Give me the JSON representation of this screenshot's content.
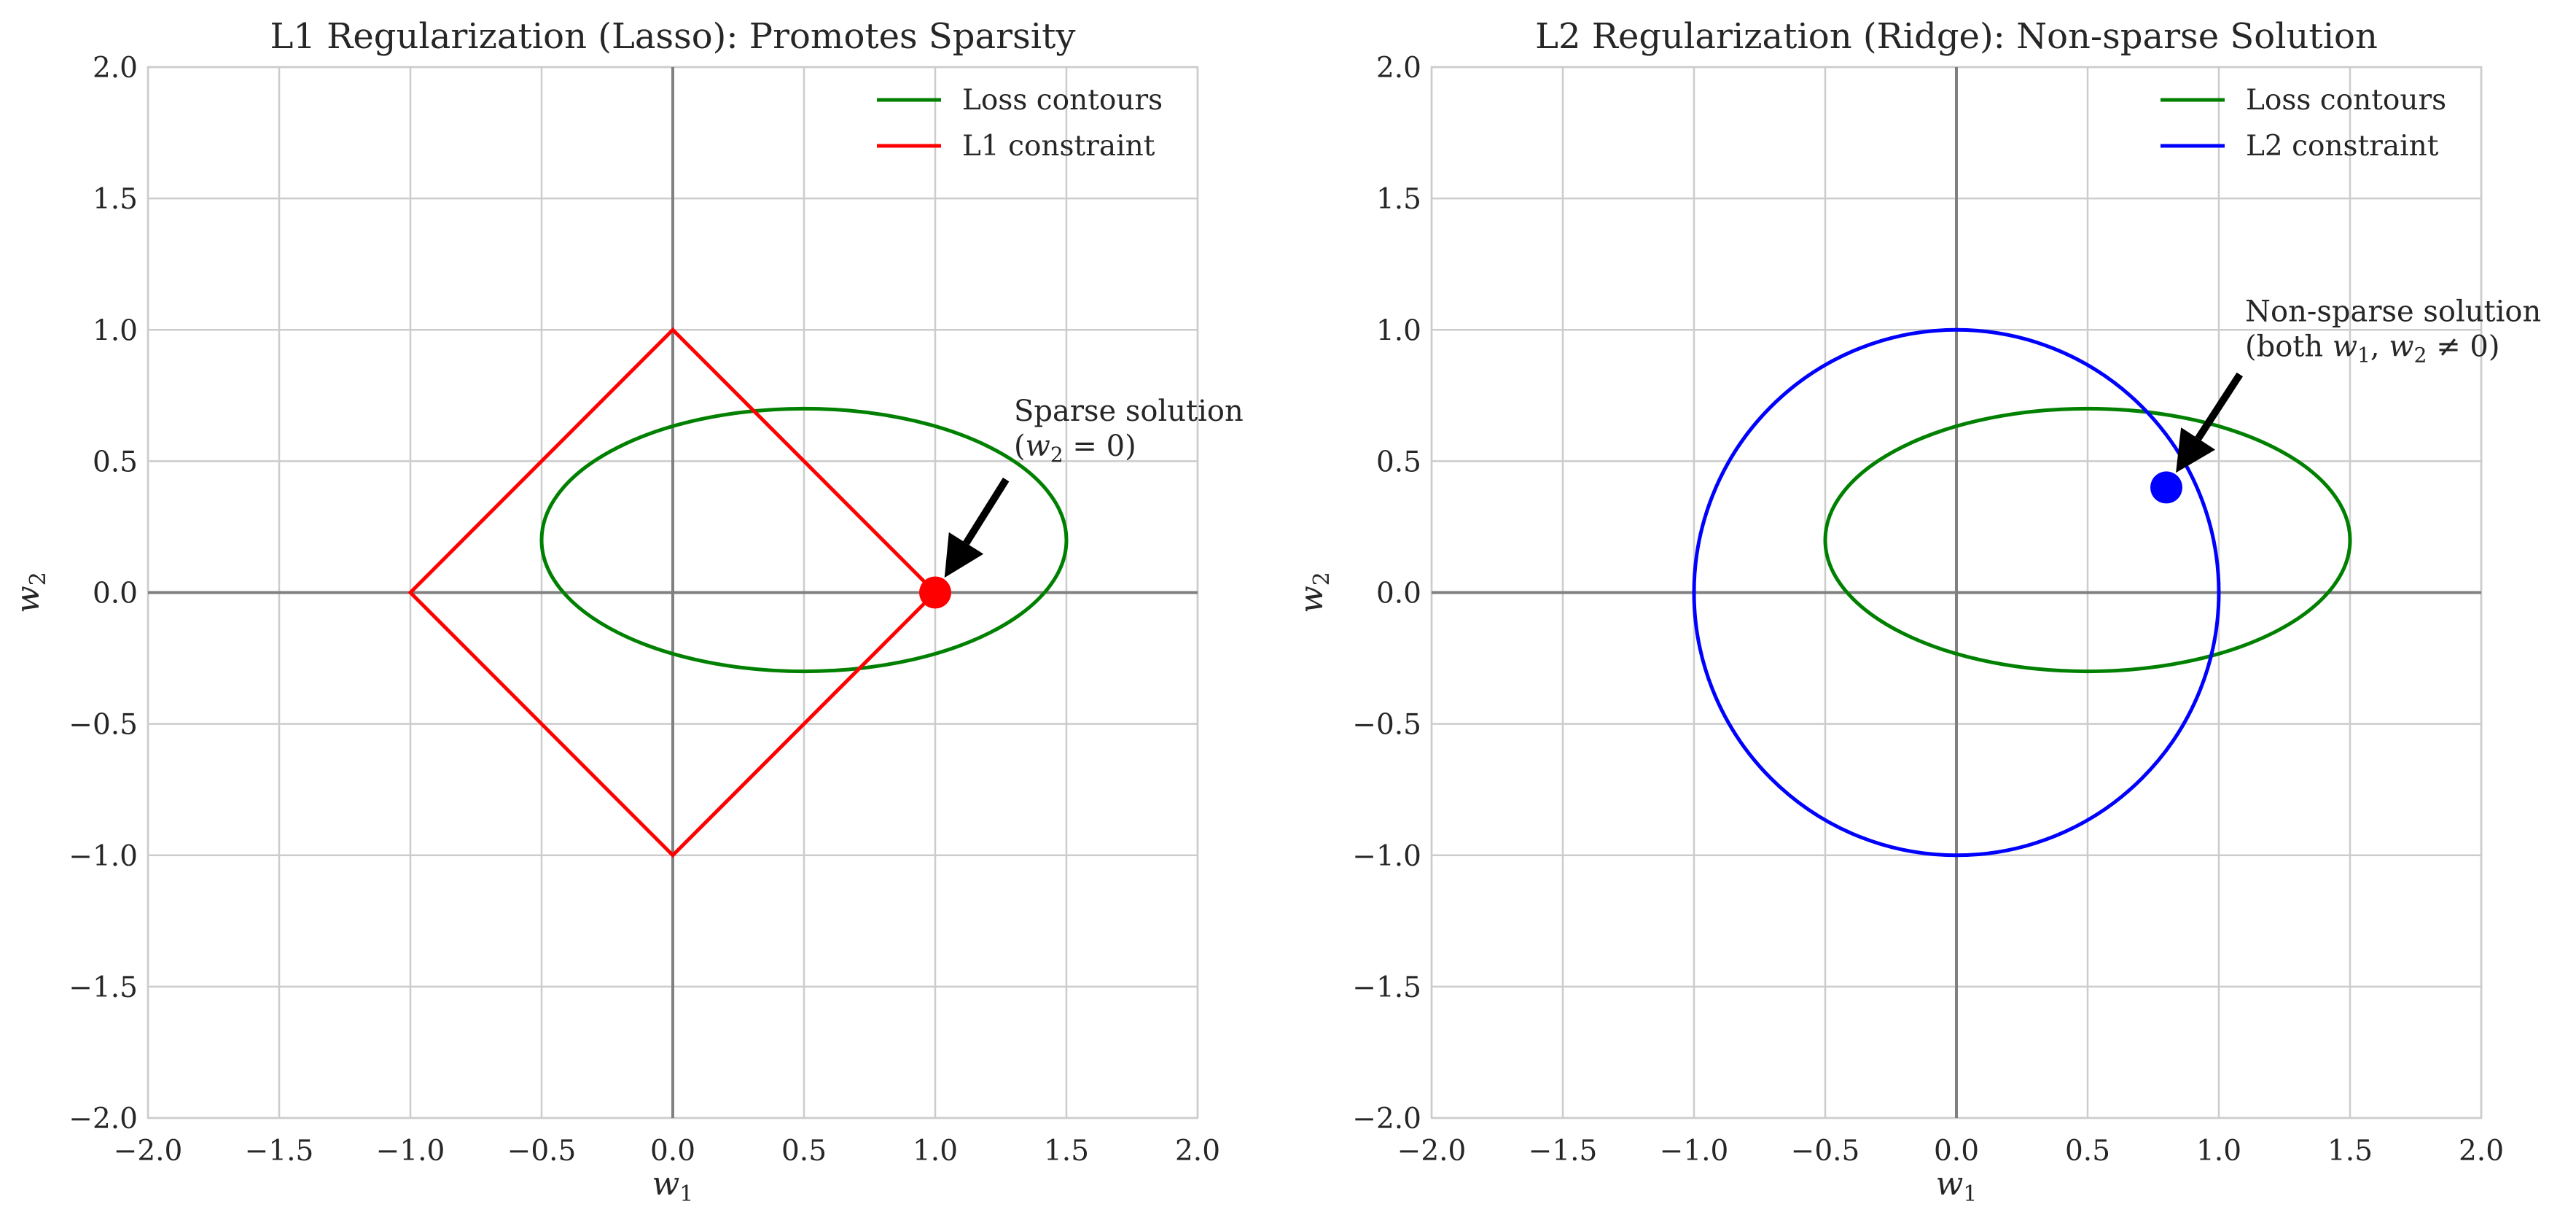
{
  "chart_data": [
    {
      "type": "line",
      "title": "L1 Regularization (Lasso): Promotes Sparsity",
      "xlabel": "w",
      "xlabel_sub": "1",
      "ylabel": "w",
      "ylabel_sub": "2",
      "xlim": [
        -2.0,
        2.0
      ],
      "ylim": [
        -2.0,
        2.0
      ],
      "xticks": [
        -2.0,
        -1.5,
        -1.0,
        -0.5,
        0.0,
        0.5,
        1.0,
        1.5,
        2.0
      ],
      "yticks": [
        -2.0,
        -1.5,
        -1.0,
        -0.5,
        0.0,
        0.5,
        1.0,
        1.5,
        2.0
      ],
      "grid": true,
      "legend_position": "top-right",
      "series": [
        {
          "name": "Loss contours",
          "color": "#008000",
          "kind": "ellipse",
          "center": [
            0.5,
            0.2
          ],
          "radii": [
            1.0,
            0.5
          ]
        },
        {
          "name": "L1 constraint",
          "color": "#ff0000",
          "kind": "polyline",
          "x": [
            1,
            0,
            -1,
            0,
            1
          ],
          "y": [
            0,
            1,
            0,
            -1,
            0
          ]
        }
      ],
      "point": {
        "x": 1.0,
        "y": 0.0,
        "color": "#ff0000"
      },
      "annotation": {
        "line1": "Sparse solution",
        "line2_prefix": "(",
        "line2_var": "w",
        "line2_sub": "2",
        "line2_suffix": " = 0)",
        "text_xy": [
          1.3,
          0.52
        ],
        "arrow_from": [
          1.27,
          0.43
        ],
        "arrow_to": [
          1.0,
          0.0
        ]
      }
    },
    {
      "type": "line",
      "title": "L2 Regularization (Ridge): Non-sparse Solution",
      "xlabel": "w",
      "xlabel_sub": "1",
      "ylabel": "w",
      "ylabel_sub": "2",
      "xlim": [
        -2.0,
        2.0
      ],
      "ylim": [
        -2.0,
        2.0
      ],
      "xticks": [
        -2.0,
        -1.5,
        -1.0,
        -0.5,
        0.0,
        0.5,
        1.0,
        1.5,
        2.0
      ],
      "yticks": [
        -2.0,
        -1.5,
        -1.0,
        -0.5,
        0.0,
        0.5,
        1.0,
        1.5,
        2.0
      ],
      "grid": true,
      "legend_position": "top-right",
      "series": [
        {
          "name": "Loss contours",
          "color": "#008000",
          "kind": "ellipse",
          "center": [
            0.5,
            0.2
          ],
          "radii": [
            1.0,
            0.5
          ]
        },
        {
          "name": "L2 constraint",
          "color": "#0000ff",
          "kind": "ellipse",
          "center": [
            0.0,
            0.0
          ],
          "radii": [
            1.0,
            1.0
          ]
        }
      ],
      "point": {
        "x": 0.8,
        "y": 0.4,
        "color": "#0000ff"
      },
      "annotation": {
        "line1": "Non-sparse solution",
        "line2_prefix": "(both ",
        "line2_var": "w",
        "line2_sub": "1",
        "line2_mid": ", ",
        "line2_var2": "w",
        "line2_sub2": "2",
        "line2_suffix": " ≠ 0)",
        "text_xy": [
          1.1,
          0.9
        ],
        "arrow_from": [
          1.08,
          0.83
        ],
        "arrow_to": [
          0.8,
          0.4
        ]
      }
    }
  ]
}
